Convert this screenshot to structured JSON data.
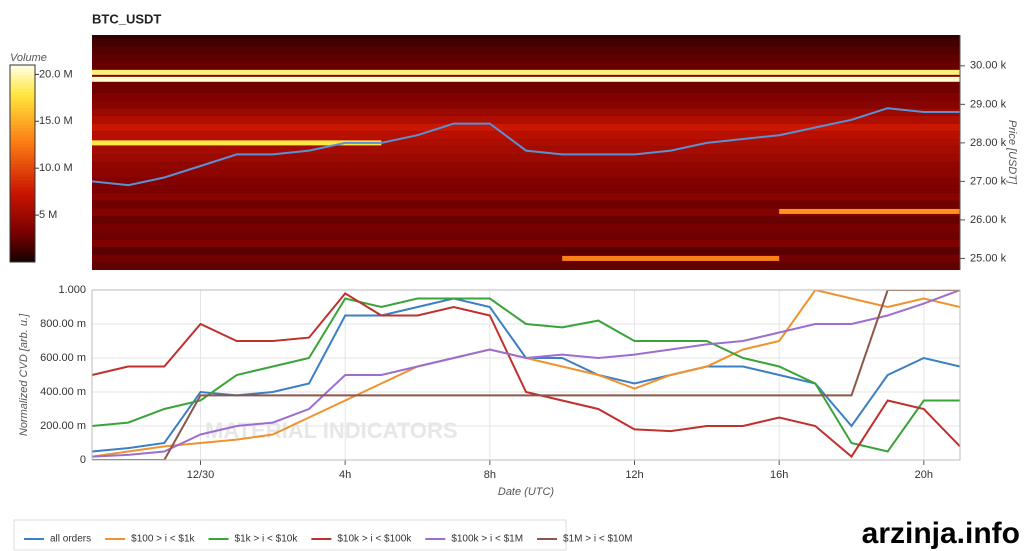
{
  "chart_data": [
    {
      "type": "heatmap",
      "title": "BTC_USDT",
      "y_label": "Price [USDT]",
      "colorbar_label": "Volume",
      "xlim": [
        -3,
        21
      ],
      "ylim": [
        24700,
        30800
      ],
      "yticks": [
        {
          "value": 25000,
          "label": "25.00 k"
        },
        {
          "value": 26000,
          "label": "26.00 k"
        },
        {
          "value": 27000,
          "label": "27.00 k"
        },
        {
          "value": 28000,
          "label": "28.00 k"
        },
        {
          "value": 29000,
          "label": "29.00 k"
        },
        {
          "value": 30000,
          "label": "30.00 k"
        }
      ],
      "zlim": [
        0,
        21000000
      ],
      "zticks": [
        {
          "value": 5000000,
          "label": "5 M"
        },
        {
          "value": 10000000,
          "label": "10.0 M"
        },
        {
          "value": 15000000,
          "label": "15.0 M"
        },
        {
          "value": 20000000,
          "label": "20.0 M"
        }
      ],
      "levels": [
        {
          "price": 24800,
          "volume": 2500000
        },
        {
          "price": 25000,
          "volume": 3000000
        },
        {
          "price": 25200,
          "volume": 2200000
        },
        {
          "price": 25400,
          "volume": 3500000
        },
        {
          "price": 25600,
          "volume": 2800000
        },
        {
          "price": 25800,
          "volume": 3200000
        },
        {
          "price": 26000,
          "volume": 2600000
        },
        {
          "price": 26200,
          "volume": 3800000
        },
        {
          "price": 26400,
          "volume": 3000000
        },
        {
          "price": 26600,
          "volume": 4000000
        },
        {
          "price": 26800,
          "volume": 3400000
        },
        {
          "price": 27000,
          "volume": 3600000
        },
        {
          "price": 27200,
          "volume": 4200000
        },
        {
          "price": 27400,
          "volume": 4500000
        },
        {
          "price": 27600,
          "volume": 5000000
        },
        {
          "price": 27800,
          "volume": 5500000
        },
        {
          "price": 28000,
          "volume": 6000000
        },
        {
          "price": 28200,
          "volume": 6500000
        },
        {
          "price": 28400,
          "volume": 7500000
        },
        {
          "price": 28600,
          "volume": 6000000
        },
        {
          "price": 28800,
          "volume": 5000000
        },
        {
          "price": 29000,
          "volume": 4000000
        },
        {
          "price": 29200,
          "volume": 3500000
        },
        {
          "price": 29400,
          "volume": 3000000
        },
        {
          "price": 29600,
          "volume": 2800000
        },
        {
          "price": 29800,
          "volume": 3200000
        },
        {
          "price": 30000,
          "volume": 2600000
        },
        {
          "price": 30200,
          "volume": 2400000
        },
        {
          "price": 30400,
          "volume": 2000000
        },
        {
          "price": 30600,
          "volume": 1500000
        }
      ],
      "walls": [
        {
          "price": 29830,
          "volume": 19000000,
          "start": -3,
          "end": 21
        },
        {
          "price": 29650,
          "volume": 20500000,
          "start": -3,
          "end": 21
        },
        {
          "price": 28000,
          "volume": 18000000,
          "start": -3,
          "end": 5
        },
        {
          "price": 26220,
          "volume": 14000000,
          "start": 16,
          "end": 21
        },
        {
          "price": 25000,
          "volume": 13000000,
          "start": 10,
          "end": 16
        }
      ],
      "price_line": {
        "color": "#5b8fd6",
        "x": [
          -3,
          -2,
          -1,
          0,
          1,
          2,
          3,
          4,
          5,
          6,
          7,
          8,
          9,
          10,
          11,
          12,
          13,
          14,
          15,
          16,
          17,
          18,
          19,
          20,
          21
        ],
        "values": [
          27000,
          26900,
          27100,
          27400,
          27700,
          27700,
          27800,
          28000,
          28000,
          28200,
          28500,
          28500,
          27800,
          27700,
          27700,
          27700,
          27800,
          28000,
          28100,
          28200,
          28400,
          28600,
          28900,
          28800,
          28800
        ]
      }
    },
    {
      "type": "line",
      "x_label": "Date (UTC)",
      "y_label": "Normalized CVD [arb. u.]",
      "watermark": "MATERIAL INDICATORS",
      "xlim": [
        -3,
        21
      ],
      "ylim": [
        0,
        1
      ],
      "xticks": [
        {
          "value": 0,
          "label": "12/30"
        },
        {
          "value": 4,
          "label": "4h"
        },
        {
          "value": 8,
          "label": "8h"
        },
        {
          "value": 12,
          "label": "12h"
        },
        {
          "value": 16,
          "label": "16h"
        },
        {
          "value": 20,
          "label": "20h"
        }
      ],
      "yticks": [
        0,
        {
          "value": 0.2,
          "label": "200.00 m"
        },
        {
          "value": 0.4,
          "label": "400.00 m"
        },
        {
          "value": 0.6,
          "label": "600.00 m"
        },
        {
          "value": 0.8,
          "label": "800.00 m"
        },
        {
          "value": 1,
          "label": "1.000"
        }
      ],
      "x": [
        -3,
        -2,
        -1,
        0,
        1,
        2,
        3,
        4,
        5,
        6,
        7,
        8,
        9,
        10,
        11,
        12,
        13,
        14,
        15,
        16,
        17,
        18,
        19,
        20,
        21
      ],
      "series": [
        {
          "name": "all orders",
          "color": "#3b7fc4",
          "values": [
            0.05,
            0.07,
            0.1,
            0.4,
            0.38,
            0.4,
            0.45,
            0.85,
            0.85,
            0.9,
            0.95,
            0.9,
            0.6,
            0.6,
            0.5,
            0.45,
            0.5,
            0.55,
            0.55,
            0.5,
            0.45,
            0.2,
            0.5,
            0.6,
            0.55
          ]
        },
        {
          "name": "$100 > i < $1k",
          "color": "#f0922e",
          "values": [
            0.02,
            0.05,
            0.08,
            0.1,
            0.12,
            0.15,
            0.25,
            0.35,
            0.45,
            0.55,
            0.6,
            0.65,
            0.6,
            0.55,
            0.5,
            0.42,
            0.5,
            0.55,
            0.65,
            0.7,
            1.0,
            0.95,
            0.9,
            0.95,
            0.9
          ]
        },
        {
          "name": "$1k > i < $10k",
          "color": "#3aa33a",
          "values": [
            0.2,
            0.22,
            0.3,
            0.35,
            0.5,
            0.55,
            0.6,
            0.95,
            0.9,
            0.95,
            0.95,
            0.95,
            0.8,
            0.78,
            0.82,
            0.7,
            0.7,
            0.7,
            0.6,
            0.55,
            0.45,
            0.1,
            0.05,
            0.35,
            0.35
          ]
        },
        {
          "name": "$10k > i < $100k",
          "color": "#c0302c",
          "values": [
            0.5,
            0.55,
            0.55,
            0.8,
            0.7,
            0.7,
            0.72,
            0.98,
            0.85,
            0.85,
            0.9,
            0.85,
            0.4,
            0.35,
            0.3,
            0.18,
            0.17,
            0.2,
            0.2,
            0.25,
            0.2,
            0.02,
            0.35,
            0.3,
            0.08
          ]
        },
        {
          "name": "$100k > i < $1M",
          "color": "#9b6fd0",
          "values": [
            0.02,
            0.03,
            0.05,
            0.15,
            0.2,
            0.22,
            0.3,
            0.5,
            0.5,
            0.55,
            0.6,
            0.65,
            0.6,
            0.62,
            0.6,
            0.62,
            0.65,
            0.68,
            0.7,
            0.75,
            0.8,
            0.8,
            0.85,
            0.92,
            1.0
          ]
        },
        {
          "name": "$1M > i < $10M",
          "color": "#8c564b",
          "values": [
            0,
            0,
            0,
            0.38,
            0.38,
            0.38,
            0.38,
            0.38,
            0.38,
            0.38,
            0.38,
            0.38,
            0.38,
            0.38,
            0.38,
            0.38,
            0.38,
            0.38,
            0.38,
            0.38,
            0.38,
            0.38,
            1.0,
            1.0,
            1.0
          ]
        }
      ]
    }
  ],
  "watermark": "arzinja.info"
}
